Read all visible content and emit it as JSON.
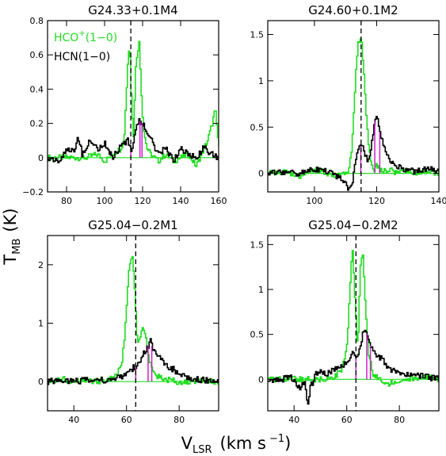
{
  "figure": {
    "ylabel_main": "T",
    "ylabel_sub": "MB",
    "ylabel_unit": "(K)",
    "xlabel_main": "V",
    "xlabel_sub": "LSR",
    "xlabel_unit": "(km s",
    "xlabel_exp": "−1",
    "xlabel_close": ")"
  },
  "legend": {
    "hco_main": "HCO",
    "hco_sup": "+",
    "hco_rest": "(1−0)",
    "hcn": "HCN(1−0)"
  },
  "colors": {
    "hco": "#22dd22",
    "hcn": "#000000",
    "marker": "#cc22cc",
    "vline": "#000000"
  },
  "chart_data": [
    {
      "type": "line",
      "title": "G24.33+0.1M4",
      "xlim": [
        70,
        160
      ],
      "ylim": [
        -0.2,
        0.8
      ],
      "xticks": [
        80,
        100,
        120,
        140,
        160
      ],
      "yticks": [
        -0.2,
        0,
        0.2,
        0.4,
        0.6,
        0.8
      ],
      "ytick_labels": [
        "−0.2",
        "0",
        "0.2",
        "0.4",
        "0.6",
        "0.8"
      ],
      "vline": 113.8,
      "series": [
        {
          "name": "HCO+(1−0)",
          "x": [
            70,
            80,
            90,
            96,
            100,
            104,
            108,
            110,
            112,
            113,
            114,
            115,
            116,
            117,
            118,
            119,
            120,
            121,
            122,
            124,
            126,
            128,
            132,
            136,
            140,
            144,
            148,
            152,
            154,
            156,
            158,
            160
          ],
          "y": [
            0.0,
            0.0,
            0.0,
            0.02,
            -0.02,
            0.02,
            0.05,
            0.1,
            0.55,
            0.67,
            0.32,
            0.12,
            0.5,
            0.62,
            0.67,
            0.42,
            0.2,
            0.12,
            0.06,
            0.02,
            0.0,
            -0.02,
            0.02,
            -0.02,
            0.0,
            0.02,
            -0.05,
            0.05,
            0.1,
            0.18,
            0.28,
            0.05
          ]
        },
        {
          "name": "HCN(1−0)",
          "x": [
            70,
            76,
            80,
            84,
            86,
            88,
            92,
            96,
            100,
            104,
            108,
            110,
            112,
            114,
            116,
            118,
            120,
            122,
            124,
            126,
            128,
            132,
            136,
            140,
            144,
            148,
            152,
            156,
            160
          ],
          "y": [
            0.0,
            -0.02,
            0.05,
            0.04,
            0.12,
            0.02,
            0.1,
            0.05,
            0.08,
            0.0,
            0.06,
            0.08,
            0.1,
            0.03,
            0.17,
            0.22,
            0.2,
            0.14,
            0.12,
            0.05,
            0.02,
            0.06,
            -0.02,
            0.05,
            0.02,
            0.0,
            0.06,
            0.02,
            0.0
          ]
        }
      ],
      "hfs_x": [
        113.8,
        118.6,
        119.7
      ]
    },
    {
      "type": "line",
      "title": "G24.60+0.1M2",
      "xlim": [
        85,
        140
      ],
      "ylim": [
        -0.2,
        1.65
      ],
      "xticks": [
        100,
        120,
        140
      ],
      "yticks": [
        0,
        0.5,
        1,
        1.5
      ],
      "ytick_labels": [
        "0",
        "0.5",
        "1",
        "1.5"
      ],
      "vline": 115.0,
      "series": [
        {
          "name": "HCO+(1−0)",
          "x": [
            85,
            90,
            95,
            100,
            104,
            108,
            110,
            111,
            112,
            113,
            114,
            115,
            116,
            117,
            118,
            119,
            120,
            122,
            124,
            126,
            128,
            132,
            136,
            140
          ],
          "y": [
            0.0,
            0.02,
            -0.03,
            0.05,
            0.0,
            -0.02,
            0.02,
            0.05,
            0.3,
            1.0,
            1.42,
            1.46,
            0.95,
            0.4,
            0.15,
            0.05,
            0.08,
            0.02,
            0.05,
            0.0,
            0.02,
            0.0,
            0.03,
            0.0
          ]
        },
        {
          "name": "HCN(1−0)",
          "x": [
            85,
            90,
            95,
            100,
            104,
            108,
            110,
            111,
            112,
            113,
            114,
            115,
            116,
            117,
            118,
            119,
            120,
            121,
            122,
            124,
            126,
            128,
            132,
            136,
            140
          ],
          "y": [
            0.0,
            0.02,
            0.0,
            0.05,
            0.02,
            -0.05,
            -0.12,
            -0.18,
            -0.1,
            0.1,
            0.25,
            0.3,
            0.22,
            0.15,
            0.25,
            0.52,
            0.62,
            0.45,
            0.3,
            0.15,
            0.08,
            0.05,
            0.02,
            0.05,
            0.02
          ]
        }
      ],
      "hfs_x": [
        114.9,
        119.4,
        121.0
      ]
    },
    {
      "type": "line",
      "title": "G25.04−0.2M1",
      "xlim": [
        30,
        95
      ],
      "ylim": [
        -0.5,
        2.5
      ],
      "xticks": [
        40,
        60,
        80
      ],
      "yticks": [
        0,
        1,
        2
      ],
      "ytick_labels": [
        "0",
        "1",
        "2"
      ],
      "vline": 63.5,
      "series": [
        {
          "name": "HCO+(1−0)",
          "x": [
            30,
            35,
            40,
            45,
            50,
            54,
            56,
            58,
            59,
            60,
            61,
            62,
            63,
            64,
            65,
            66,
            67,
            68,
            69,
            70,
            72,
            74,
            76,
            80,
            85,
            90,
            95
          ],
          "y": [
            0.0,
            0.05,
            0.0,
            0.02,
            0.0,
            0.05,
            0.1,
            0.3,
            0.7,
            1.4,
            2.0,
            2.2,
            1.5,
            0.6,
            0.8,
            0.95,
            0.8,
            0.45,
            0.3,
            0.15,
            0.08,
            0.05,
            0.02,
            0.0,
            0.0,
            0.02,
            0.0
          ]
        },
        {
          "name": "HCN(1−0)",
          "x": [
            30,
            35,
            40,
            45,
            50,
            55,
            58,
            60,
            62,
            64,
            66,
            68,
            69,
            70,
            72,
            74,
            76,
            78,
            80,
            85,
            90,
            95
          ],
          "y": [
            0.0,
            0.02,
            0.0,
            0.03,
            0.02,
            0.05,
            0.08,
            0.15,
            0.22,
            0.28,
            0.45,
            0.6,
            0.7,
            0.55,
            0.45,
            0.3,
            0.25,
            0.2,
            0.1,
            0.05,
            0.02,
            0.0
          ]
        }
      ],
      "hfs_x": [
        63.5,
        68.2,
        69.6
      ]
    },
    {
      "type": "line",
      "title": "G25.04−0.2M2",
      "xlim": [
        30,
        95
      ],
      "ylim": [
        -0.35,
        1.6
      ],
      "xticks": [
        40,
        60,
        80
      ],
      "yticks": [
        0,
        0.5,
        1,
        1.5
      ],
      "ytick_labels": [
        "0",
        "0.5",
        "1",
        "1.5"
      ],
      "vline": 63.5,
      "series": [
        {
          "name": "HCO+(1−0)",
          "x": [
            30,
            35,
            40,
            45,
            50,
            55,
            58,
            60,
            61,
            62,
            63,
            64,
            65,
            66,
            67,
            68,
            70,
            72,
            74,
            76,
            80,
            85,
            90,
            95
          ],
          "y": [
            0.0,
            0.0,
            0.0,
            0.0,
            0.0,
            0.02,
            0.1,
            0.4,
            1.0,
            1.48,
            0.9,
            0.3,
            1.25,
            1.42,
            0.8,
            0.3,
            0.05,
            0.0,
            -0.05,
            -0.05,
            0.0,
            0.0,
            0.02,
            0.0
          ]
        },
        {
          "name": "HCN(1−0)",
          "x": [
            30,
            35,
            38,
            40,
            42,
            44,
            45,
            46,
            48,
            50,
            52,
            55,
            58,
            60,
            62,
            64,
            66,
            67,
            68,
            70,
            72,
            74,
            76,
            80,
            85,
            90,
            95
          ],
          "y": [
            0.0,
            0.0,
            0.02,
            0.0,
            -0.1,
            0.0,
            -0.3,
            -0.1,
            0.05,
            0.1,
            0.05,
            0.1,
            0.15,
            0.2,
            0.28,
            0.22,
            0.52,
            0.58,
            0.45,
            0.3,
            0.25,
            0.2,
            0.12,
            0.08,
            0.05,
            0.03,
            0.0
          ]
        }
      ],
      "hfs_x": [
        63.5,
        67.6,
        69.0
      ]
    }
  ]
}
